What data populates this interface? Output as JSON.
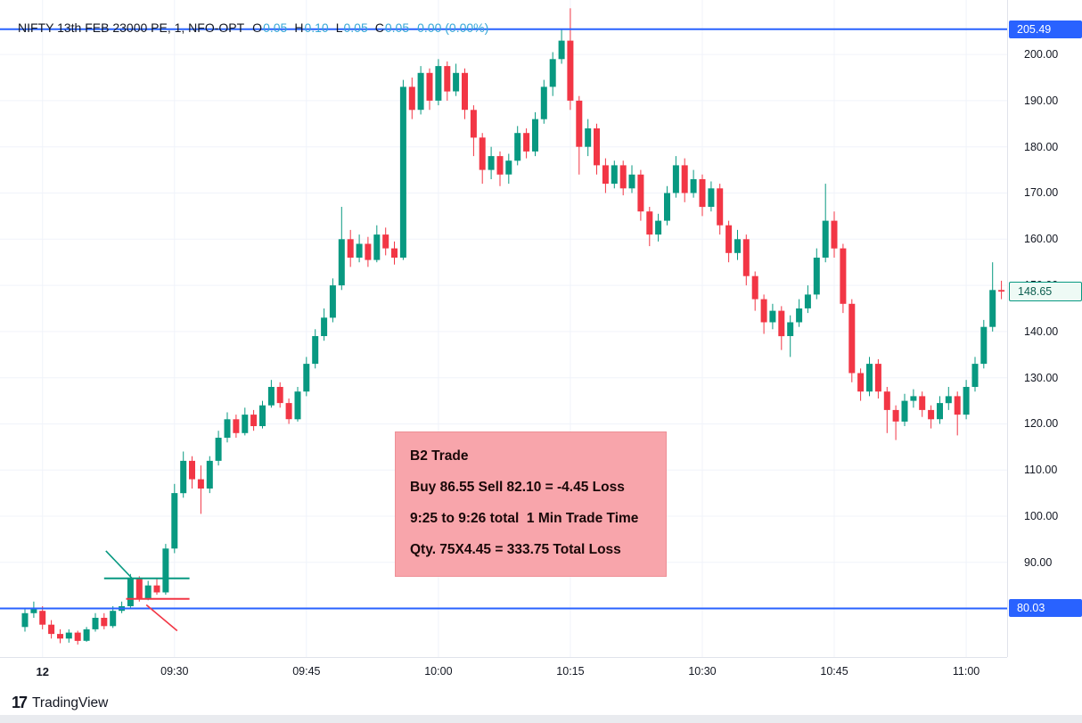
{
  "colors": {
    "up": "#089981",
    "down": "#f23645",
    "blue_line": "#2962ff",
    "grid": "#f0f3fa",
    "axis_text": "#131722",
    "legend_values": "#35a7d7",
    "note_bg": "#f8a5ab",
    "note_border": "#ee8f96",
    "badge_blue_bg": "#2962ff",
    "badge_blue_text": "#ffffff",
    "last_badge_bg": "#eefaf5",
    "last_badge_border": "#089981",
    "last_badge_text": "#0b5d4e"
  },
  "legend": {
    "symbol": "NIFTY 13th FEB 23000 PE, 1, NFO-OPT",
    "ohlc": [
      {
        "label": "O",
        "value": "0.05"
      },
      {
        "label": "H",
        "value": "0.10"
      },
      {
        "label": "L",
        "value": "0.05"
      },
      {
        "label": "C",
        "value": "0.05"
      }
    ],
    "change": "0.00 (0.00%)"
  },
  "note_box": {
    "lines": [
      "B2 Trade",
      "Buy 86.55 Sell 82.10 = -4.45 Loss",
      "9:25 to 9:26 total  1 Min Trade Time",
      "Qty. 75X4.45 = 333.75 Total Loss"
    ]
  },
  "footer": {
    "logo_glyph": "17",
    "brand": "TradingView"
  },
  "chart_data": {
    "type": "candlestick",
    "symbol": "NIFTY 13th FEB 23000 PE",
    "interval": "1",
    "exchange": "NFO-OPT",
    "y_ticks": [
      200,
      190,
      180,
      170,
      160,
      150,
      140,
      130,
      120,
      110,
      100,
      90
    ],
    "y_range": {
      "min": 69.5,
      "max": 211.8
    },
    "x_ticks": [
      {
        "i": 2,
        "label": "12",
        "strong": true
      },
      {
        "i": 17,
        "label": "09:30"
      },
      {
        "i": 32,
        "label": "09:45"
      },
      {
        "i": 47,
        "label": "10:00"
      },
      {
        "i": 62,
        "label": "10:15"
      },
      {
        "i": 77,
        "label": "10:30"
      },
      {
        "i": 92,
        "label": "10:45"
      },
      {
        "i": 107,
        "label": "11:00"
      }
    ],
    "h_lines": [
      {
        "price": 205.49,
        "label": "205.49"
      },
      {
        "price": 80.03,
        "label": "80.03"
      }
    ],
    "last_price": 148.65,
    "last_price_label": "148.65",
    "annotations": [
      {
        "type": "hseg",
        "color": "up",
        "price": 86.55,
        "i1": 9,
        "i2": 18.7
      },
      {
        "type": "hseg",
        "color": "down",
        "price": 82.1,
        "i1": 11.5,
        "i2": 18.7
      },
      {
        "type": "seg",
        "color": "up",
        "i1": 9.2,
        "p1": 92.5,
        "i2": 12.3,
        "p2": 86.3
      },
      {
        "type": "seg",
        "color": "down",
        "i1": 13.8,
        "p1": 80.8,
        "i2": 17.3,
        "p2": 75.2
      }
    ],
    "candles": [
      [
        "09:13",
        76,
        80,
        75,
        79
      ],
      [
        "09:14",
        79,
        81.5,
        78,
        80
      ],
      [
        "09:15",
        79.5,
        80.5,
        75.5,
        76.5
      ],
      [
        "09:16",
        76.5,
        77.5,
        73.5,
        74.5
      ],
      [
        "09:17",
        74.5,
        75.5,
        72.5,
        73.5
      ],
      [
        "09:18",
        73.5,
        75.5,
        72.6,
        74.8
      ],
      [
        "09:19",
        74.8,
        75.2,
        72.2,
        73
      ],
      [
        "09:20",
        73,
        76,
        72.8,
        75.5
      ],
      [
        "09:21",
        75.5,
        79,
        75,
        78
      ],
      [
        "09:22",
        78,
        79,
        75.5,
        76.2
      ],
      [
        "09:23",
        76.2,
        80.5,
        75.8,
        79.5
      ],
      [
        "09:24",
        79.5,
        81.5,
        79,
        80.5
      ],
      [
        "09:25",
        80.5,
        87.5,
        80,
        86.55
      ],
      [
        "09:26",
        86.55,
        87,
        81.5,
        82.1
      ],
      [
        "09:27",
        82.1,
        86,
        81.8,
        85
      ],
      [
        "09:28",
        85,
        86.5,
        83,
        83.5
      ],
      [
        "09:29",
        83.5,
        94,
        83,
        93
      ],
      [
        "09:30",
        93,
        107,
        92,
        105
      ],
      [
        "09:31",
        105,
        114,
        104,
        112
      ],
      [
        "09:32",
        112,
        113,
        106,
        108
      ],
      [
        "09:33",
        108,
        111,
        100.5,
        106
      ],
      [
        "09:34",
        106,
        113,
        105,
        112
      ],
      [
        "09:35",
        112,
        118.5,
        111,
        117
      ],
      [
        "09:36",
        117,
        122.5,
        116,
        121
      ],
      [
        "09:37",
        121,
        122,
        117,
        118
      ],
      [
        "09:38",
        118,
        123.5,
        117.5,
        122
      ],
      [
        "09:39",
        122,
        123,
        118.5,
        119.5
      ],
      [
        "09:40",
        119.5,
        125,
        119,
        124
      ],
      [
        "09:41",
        124,
        129.5,
        123.5,
        128
      ],
      [
        "09:42",
        128,
        129,
        123.5,
        124.5
      ],
      [
        "09:43",
        124.5,
        125.5,
        120,
        121
      ],
      [
        "09:44",
        121,
        128,
        120.5,
        127
      ],
      [
        "09:45",
        127,
        134.5,
        126,
        133
      ],
      [
        "09:46",
        133,
        140.5,
        132,
        139
      ],
      [
        "09:47",
        139,
        145,
        138,
        143
      ],
      [
        "09:48",
        143,
        151.5,
        142,
        150
      ],
      [
        "09:49",
        150,
        167,
        149,
        160
      ],
      [
        "09:50",
        160,
        162,
        154,
        156
      ],
      [
        "09:51",
        156,
        161,
        155,
        159
      ],
      [
        "09:52",
        159,
        160.5,
        154,
        155.5
      ],
      [
        "09:53",
        155.5,
        163,
        155,
        161
      ],
      [
        "09:54",
        161,
        162.5,
        156.5,
        158
      ],
      [
        "09:55",
        158,
        159.5,
        154.5,
        156
      ],
      [
        "09:56",
        156,
        194.5,
        155.5,
        193
      ],
      [
        "09:57",
        193,
        195,
        186,
        188
      ],
      [
        "09:58",
        188,
        197.5,
        187,
        196
      ],
      [
        "09:59",
        196,
        197,
        188,
        190
      ],
      [
        "10:00",
        190,
        199,
        189,
        197.5
      ],
      [
        "10:01",
        197.5,
        198.5,
        190,
        192
      ],
      [
        "10:02",
        192,
        198,
        191,
        196
      ],
      [
        "10:03",
        196,
        197,
        186,
        188
      ],
      [
        "10:04",
        188,
        189,
        178,
        182
      ],
      [
        "10:05",
        182,
        183,
        172,
        175
      ],
      [
        "10:06",
        175,
        180,
        173,
        178
      ],
      [
        "10:07",
        178,
        179,
        171.5,
        174
      ],
      [
        "10:08",
        174,
        178.5,
        172,
        177
      ],
      [
        "10:09",
        177,
        184.5,
        176,
        183
      ],
      [
        "10:10",
        183,
        184,
        177.5,
        179
      ],
      [
        "10:11",
        179,
        187.5,
        178,
        186
      ],
      [
        "10:12",
        186,
        194.5,
        185,
        193
      ],
      [
        "10:13",
        193,
        200.5,
        191,
        199
      ],
      [
        "10:14",
        199,
        205.5,
        198,
        203
      ],
      [
        "10:15",
        203,
        210,
        188,
        190
      ],
      [
        "10:16",
        190,
        191,
        174,
        180
      ],
      [
        "10:17",
        180,
        186,
        178,
        184
      ],
      [
        "10:18",
        184,
        185,
        174,
        176
      ],
      [
        "10:19",
        176,
        177.5,
        170,
        172
      ],
      [
        "10:20",
        172,
        177,
        171,
        176
      ],
      [
        "10:21",
        176,
        177,
        169.5,
        171
      ],
      [
        "10:22",
        171,
        176,
        170,
        174
      ],
      [
        "10:23",
        174,
        175,
        164,
        166
      ],
      [
        "10:24",
        166,
        167,
        158.5,
        161
      ],
      [
        "10:25",
        161,
        165.5,
        159.5,
        164
      ],
      [
        "10:26",
        164,
        171.5,
        163,
        170
      ],
      [
        "10:27",
        170,
        178,
        169,
        176
      ],
      [
        "10:28",
        176,
        177.5,
        168,
        170
      ],
      [
        "10:29",
        170,
        175,
        169,
        173
      ],
      [
        "10:30",
        173,
        174,
        165,
        167
      ],
      [
        "10:31",
        167,
        172.5,
        166,
        171
      ],
      [
        "10:32",
        171,
        172,
        161,
        163
      ],
      [
        "10:33",
        163,
        164,
        155,
        157
      ],
      [
        "10:34",
        157,
        162,
        155.5,
        160
      ],
      [
        "10:35",
        160,
        161,
        150,
        152
      ],
      [
        "10:36",
        152,
        153,
        144.5,
        147
      ],
      [
        "10:37",
        147,
        148,
        139.5,
        142
      ],
      [
        "10:38",
        142,
        146,
        140.5,
        144.5
      ],
      [
        "10:39",
        144.5,
        145.5,
        136,
        139
      ],
      [
        "10:40",
        139,
        143.5,
        134.5,
        142
      ],
      [
        "10:41",
        142,
        147,
        141,
        145
      ],
      [
        "10:42",
        145,
        150,
        144,
        148
      ],
      [
        "10:43",
        148,
        158,
        147,
        156
      ],
      [
        "10:44",
        156,
        172,
        155,
        164
      ],
      [
        "10:45",
        164,
        166,
        156,
        158
      ],
      [
        "10:46",
        158,
        159,
        144,
        146
      ],
      [
        "10:47",
        146,
        147,
        129,
        131
      ],
      [
        "10:48",
        131,
        132,
        125,
        127
      ],
      [
        "10:49",
        127,
        134.5,
        126,
        133
      ],
      [
        "10:50",
        133,
        134,
        125.5,
        127
      ],
      [
        "10:51",
        127,
        128,
        118,
        123
      ],
      [
        "10:52",
        123,
        124,
        116.5,
        120.5
      ],
      [
        "10:53",
        120.5,
        126.5,
        119.5,
        125
      ],
      [
        "10:54",
        125,
        127.5,
        123.5,
        126
      ],
      [
        "10:55",
        126,
        127,
        121.5,
        123
      ],
      [
        "10:56",
        123,
        124,
        119,
        121
      ],
      [
        "10:57",
        121,
        126,
        120,
        124.5
      ],
      [
        "10:58",
        124.5,
        128,
        123,
        126
      ],
      [
        "10:59",
        126,
        127,
        117.5,
        122
      ],
      [
        "11:00",
        122,
        129.5,
        121,
        128
      ],
      [
        "11:01",
        128,
        134.5,
        127,
        133
      ],
      [
        "11:02",
        133,
        142.5,
        132,
        141
      ],
      [
        "11:03",
        141,
        155,
        140,
        149
      ],
      [
        "11:04",
        149,
        151,
        147,
        148.65
      ]
    ]
  }
}
